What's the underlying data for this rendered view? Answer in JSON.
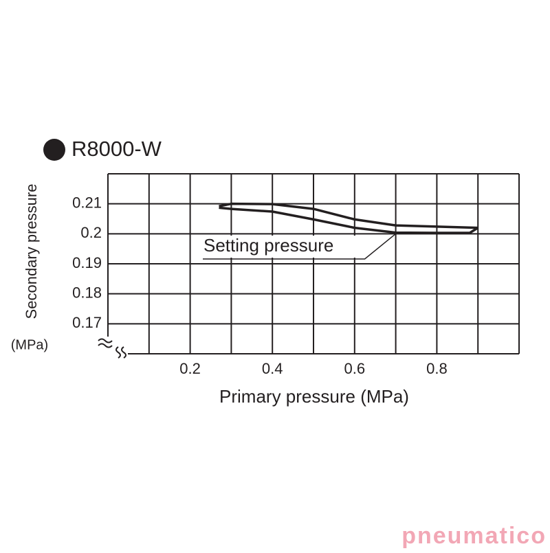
{
  "chart_data": {
    "type": "line",
    "title": "R8000-W",
    "x_label": "Primary pressure (MPa)",
    "y_label": "Secondary pressure",
    "y_unit": "(MPa)",
    "xlim": [
      0,
      1.0
    ],
    "ylim": [
      0.16,
      0.22
    ],
    "xticks": [
      0.2,
      0.4,
      0.6,
      0.8
    ],
    "yticks": [
      0.21,
      0.2,
      0.19,
      0.18,
      0.17
    ],
    "xgrid": [
      0,
      0.1,
      0.2,
      0.3,
      0.4,
      0.5,
      0.6,
      0.7,
      0.8,
      0.9,
      1.0
    ],
    "ygrid": [
      0.17,
      0.18,
      0.19,
      0.2,
      0.21,
      0.22
    ],
    "grid": true,
    "series": [
      {
        "color": "#231f20",
        "x": [
          0.27,
          0.3,
          0.4,
          0.5,
          0.6,
          0.7,
          0.8,
          0.9
        ],
        "values": [
          0.2092,
          0.21,
          0.2099,
          0.2083,
          0.2048,
          0.2028,
          0.2024,
          0.202
        ]
      },
      {
        "color": "#231f20",
        "x": [
          0.27,
          0.3,
          0.4,
          0.5,
          0.6,
          0.7,
          0.8,
          0.88,
          0.9
        ],
        "values": [
          0.2087,
          0.2083,
          0.2074,
          0.2048,
          0.202,
          0.2004,
          0.2003,
          0.2003,
          0.202
        ]
      }
    ],
    "annotation": {
      "text": "Setting pressure",
      "x": 0.7,
      "y": 0.2
    },
    "watermark": "pneumatico"
  }
}
